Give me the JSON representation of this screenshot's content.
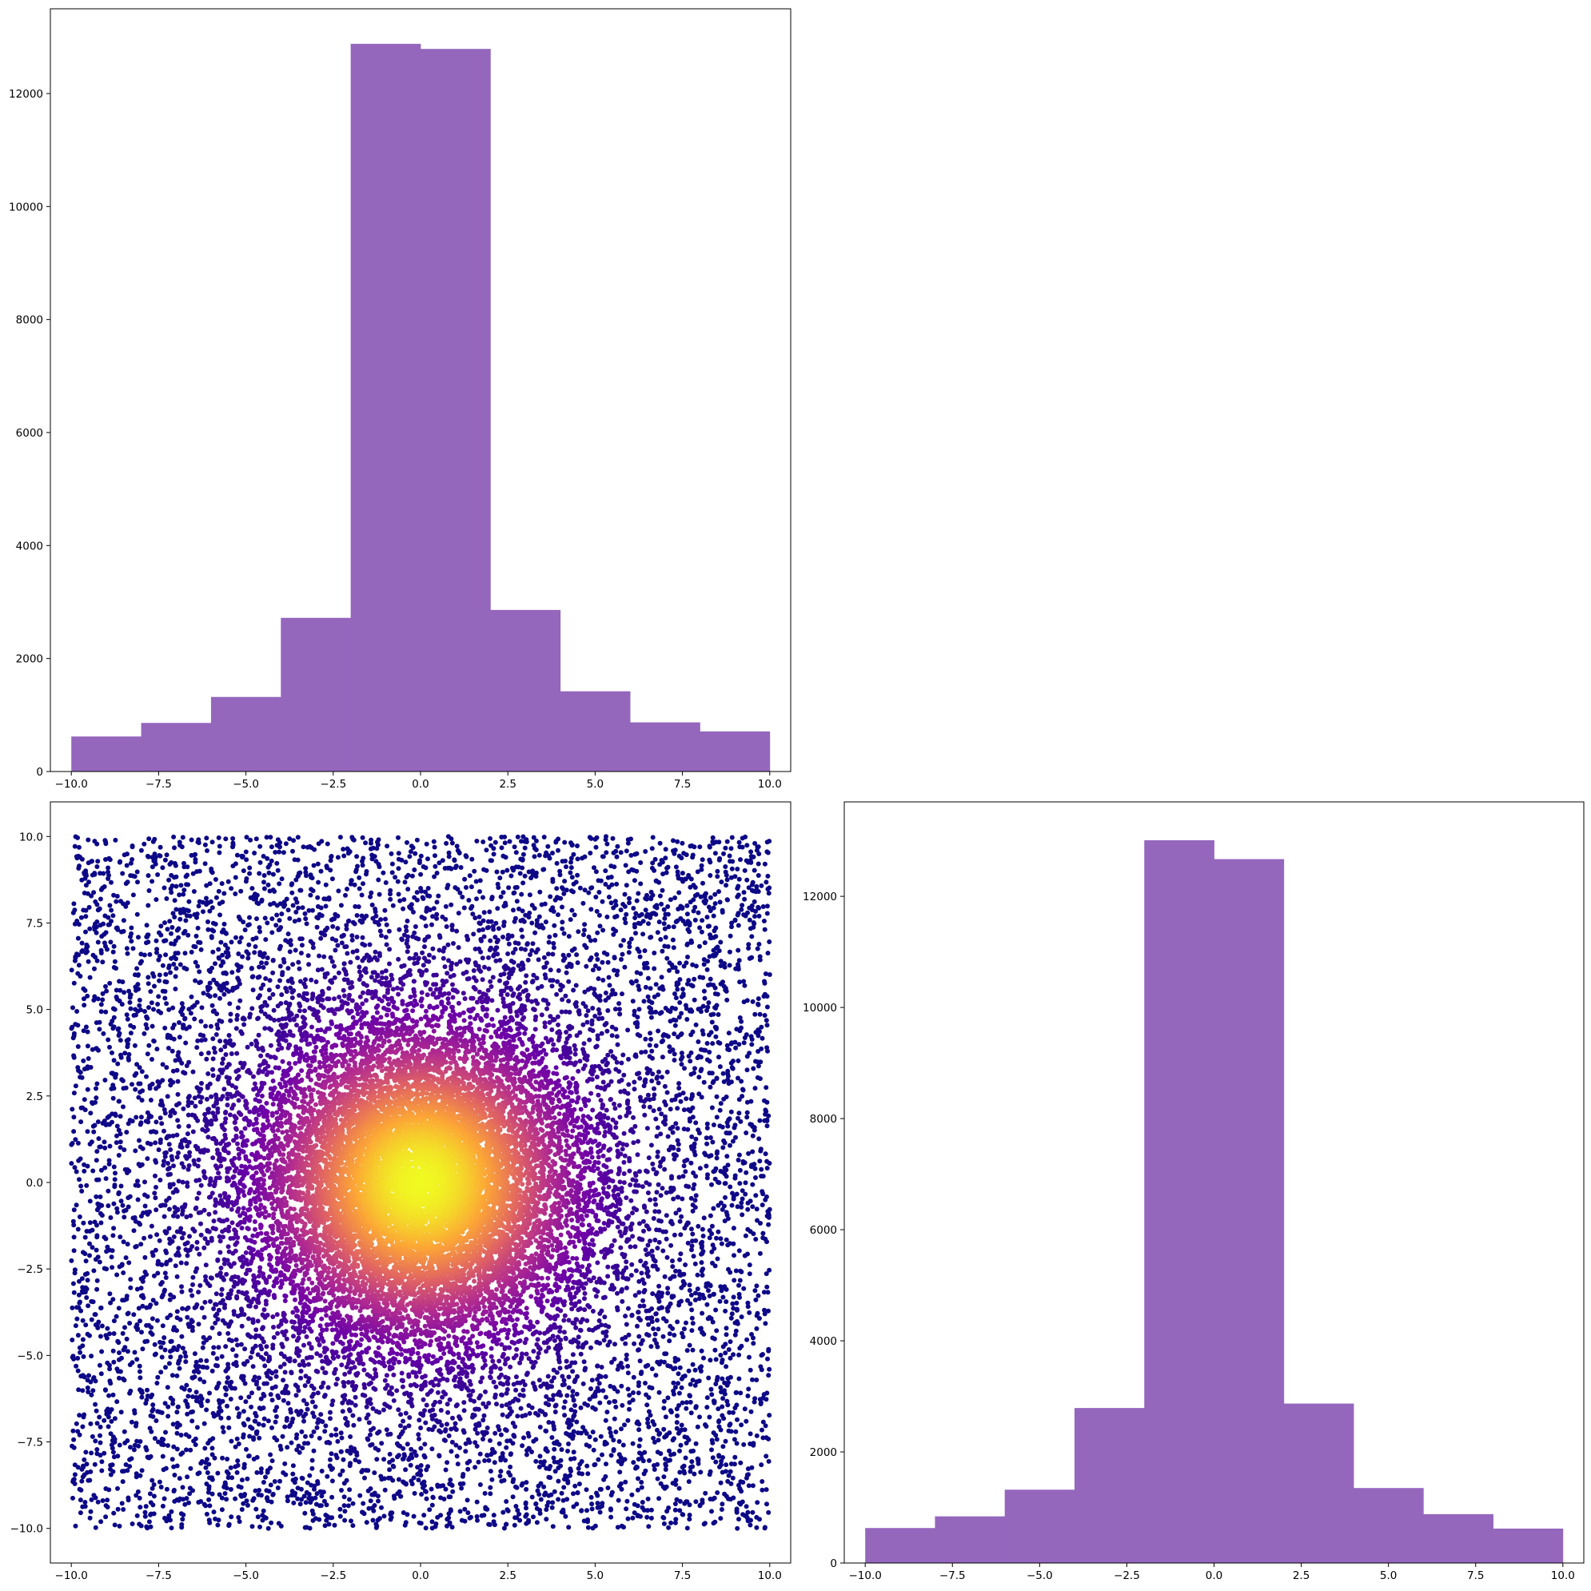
{
  "figure": {
    "background": "#ffffff"
  },
  "chart_data": [
    {
      "id": "hist_x",
      "type": "bar",
      "subtype": "histogram",
      "position": "top-left",
      "color": "#9467bd",
      "bin_edges": [
        -10,
        -8,
        -6,
        -4,
        -2,
        0,
        2,
        4,
        6,
        8,
        10
      ],
      "values": [
        620,
        860,
        1320,
        2720,
        12880,
        12790,
        2860,
        1420,
        870,
        710
      ],
      "xlim": [
        -10.6,
        10.6
      ],
      "ylim": [
        0,
        13500
      ],
      "xticks": [
        -10,
        -7.5,
        -5,
        -2.5,
        0,
        2.5,
        5,
        7.5,
        10
      ],
      "xtick_labels": [
        "−10.0",
        "−7.5",
        "−5.0",
        "−2.5",
        "0.0",
        "2.5",
        "5.0",
        "7.5",
        "10.0"
      ],
      "yticks": [
        0,
        2000,
        4000,
        6000,
        8000,
        10000,
        12000
      ],
      "ytick_labels": [
        "0",
        "2000",
        "4000",
        "6000",
        "8000",
        "10000",
        "12000"
      ],
      "grid": false
    },
    {
      "id": "scatter_xy",
      "type": "scatter",
      "position": "bottom-left",
      "colormap": [
        "#0d0887",
        "#6a00a8",
        "#b12a90",
        "#e16462",
        "#fca636",
        "#f0f921"
      ],
      "color_by": "point density",
      "x_distribution": "mixture: uniform on [-10, 10] and normal(0, ~2.5) clipped to [-10, 10]",
      "y_distribution": "mixture: uniform on [-10, 10] and normal(0, ~2.5) clipped to [-10, 10]",
      "n_points_rendered": 20000,
      "xlim": [
        -10.6,
        10.6
      ],
      "ylim": [
        -11.0,
        11.0
      ],
      "xticks": [
        -10,
        -7.5,
        -5,
        -2.5,
        0,
        2.5,
        5,
        7.5,
        10
      ],
      "xtick_labels": [
        "−10.0",
        "−7.5",
        "−5.0",
        "−2.5",
        "0.0",
        "2.5",
        "5.0",
        "7.5",
        "10.0"
      ],
      "yticks": [
        -10,
        -7.5,
        -5,
        -2.5,
        0,
        2.5,
        5,
        7.5,
        10
      ],
      "ytick_labels": [
        "−10.0",
        "−7.5",
        "−5.0",
        "−2.5",
        "0.0",
        "2.5",
        "5.0",
        "7.5",
        "10.0"
      ],
      "grid": false
    },
    {
      "id": "hist_y",
      "type": "bar",
      "subtype": "histogram",
      "position": "bottom-right",
      "color": "#9467bd",
      "bin_edges": [
        -10,
        -8,
        -6,
        -4,
        -2,
        0,
        2,
        4,
        6,
        8,
        10
      ],
      "values": [
        630,
        840,
        1320,
        2790,
        13010,
        12670,
        2870,
        1350,
        880,
        620
      ],
      "xlim": [
        -10.6,
        10.6
      ],
      "ylim": [
        0,
        13700
      ],
      "xticks": [
        -10,
        -7.5,
        -5,
        -2.5,
        0,
        2.5,
        5,
        7.5,
        10
      ],
      "xtick_labels": [
        "−10.0",
        "−7.5",
        "−5.0",
        "−2.5",
        "0.0",
        "2.5",
        "5.0",
        "7.5",
        "10.0"
      ],
      "yticks": [
        0,
        2000,
        4000,
        6000,
        8000,
        10000,
        12000
      ],
      "ytick_labels": [
        "0",
        "2000",
        "4000",
        "6000",
        "8000",
        "10000",
        "12000"
      ],
      "grid": false
    }
  ]
}
